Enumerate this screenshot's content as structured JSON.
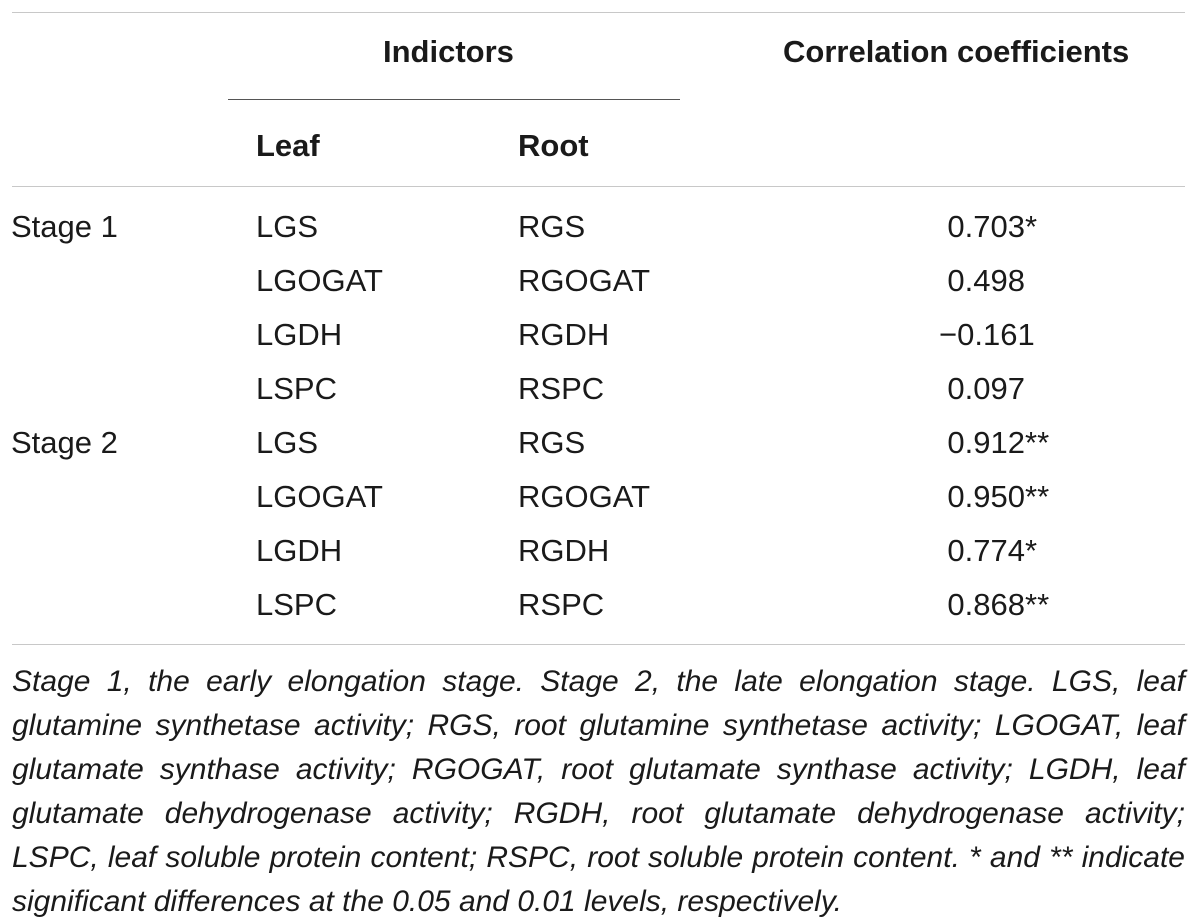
{
  "header": {
    "indicators": "Indictors",
    "correlation": "Correlation coefficients",
    "leaf": "Leaf",
    "root": "Root"
  },
  "rows": [
    {
      "stage": "Stage 1",
      "leaf": "LGS",
      "root": "RGS",
      "value": "0.703",
      "sig": "*"
    },
    {
      "stage": "",
      "leaf": "LGOGAT",
      "root": "RGOGAT",
      "value": "0.498",
      "sig": ""
    },
    {
      "stage": "",
      "leaf": "LGDH",
      "root": "RGDH",
      "value": "−0.161",
      "sig": ""
    },
    {
      "stage": "",
      "leaf": "LSPC",
      "root": "RSPC",
      "value": "0.097",
      "sig": ""
    },
    {
      "stage": "Stage 2",
      "leaf": "LGS",
      "root": "RGS",
      "value": "0.912",
      "sig": "**"
    },
    {
      "stage": "",
      "leaf": "LGOGAT",
      "root": "RGOGAT",
      "value": "0.950",
      "sig": "**"
    },
    {
      "stage": "",
      "leaf": "LGDH",
      "root": "RGDH",
      "value": "0.774",
      "sig": "*"
    },
    {
      "stage": "",
      "leaf": "LSPC",
      "root": "RSPC",
      "value": "0.868",
      "sig": "**"
    }
  ],
  "footnote": "Stage 1, the early elongation stage. Stage 2, the late elongation stage. LGS, leaf glutamine synthetase activity; RGS, root glutamine synthetase activity; LGOGAT, leaf glutamate synthase activity; RGOGAT, root glutamate synthase activity; LGDH, leaf glutamate dehydrogenase activity; RGDH, root glutamate dehydrogenase activity; LSPC, leaf soluble protein content; RSPC, root soluble protein content. * and ** indicate significant differences at the 0.05 and 0.01 levels, respectively."
}
